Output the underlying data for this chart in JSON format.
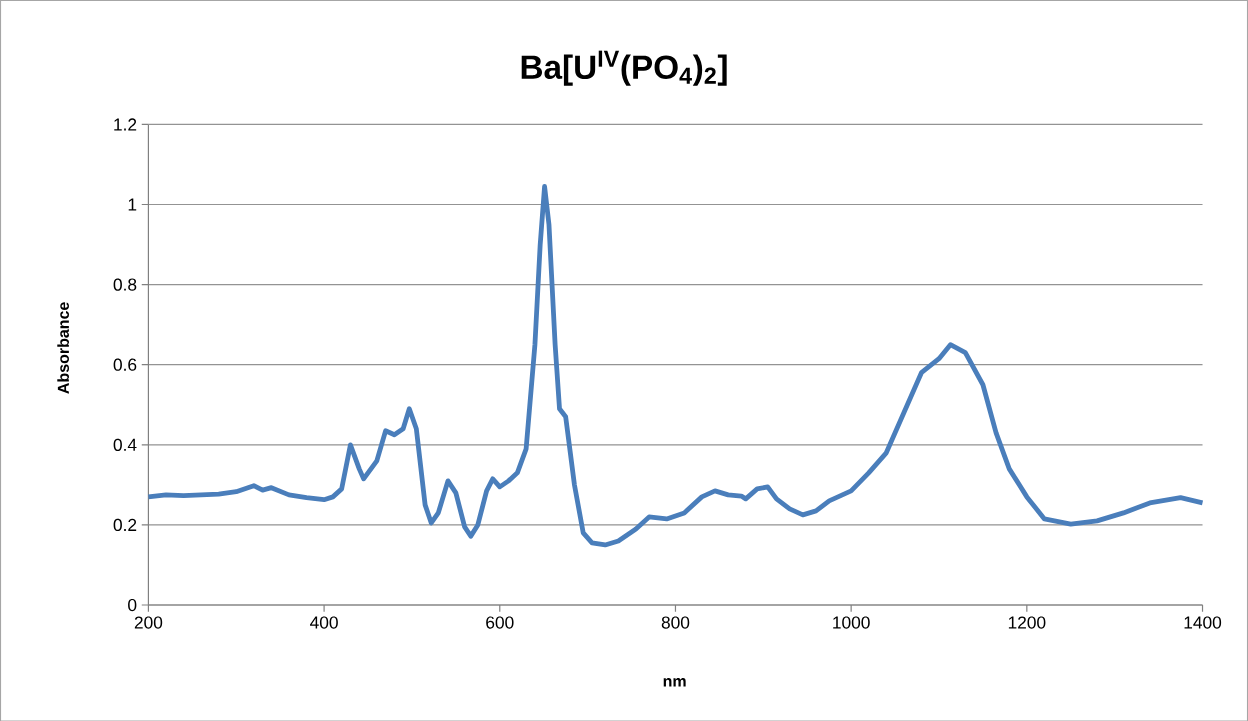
{
  "chart_data": {
    "type": "line",
    "title": "Ba[U$^{IV}$(PO$_{4}$)$_{2}$]",
    "xlabel": "nm",
    "ylabel": "Absorbance",
    "x": [
      200,
      220,
      240,
      260,
      280,
      300,
      320,
      330,
      340,
      360,
      380,
      400,
      410,
      420,
      430,
      440,
      445,
      460,
      470,
      480,
      490,
      497,
      505,
      515,
      522,
      530,
      541,
      550,
      560,
      567,
      575,
      585,
      592,
      600,
      610,
      620,
      630,
      640,
      646,
      651,
      656,
      663,
      668,
      675,
      685,
      695,
      705,
      720,
      735,
      755,
      770,
      790,
      810,
      830,
      845,
      860,
      875,
      880,
      893,
      905,
      915,
      930,
      945,
      960,
      975,
      1000,
      1020,
      1040,
      1060,
      1080,
      1100,
      1113,
      1130,
      1150,
      1165,
      1180,
      1200,
      1220,
      1250,
      1280,
      1310,
      1340,
      1375,
      1400
    ],
    "series": [
      {
        "color": "#4a7ebb",
        "values": [
          0.27,
          0.275,
          0.273,
          0.275,
          0.277,
          0.283,
          0.298,
          0.287,
          0.293,
          0.275,
          0.268,
          0.263,
          0.27,
          0.29,
          0.4,
          0.34,
          0.315,
          0.36,
          0.435,
          0.425,
          0.44,
          0.49,
          0.44,
          0.25,
          0.205,
          0.23,
          0.31,
          0.28,
          0.195,
          0.172,
          0.2,
          0.285,
          0.315,
          0.295,
          0.31,
          0.33,
          0.39,
          0.65,
          0.9,
          1.045,
          0.95,
          0.65,
          0.49,
          0.47,
          0.3,
          0.18,
          0.155,
          0.15,
          0.16,
          0.19,
          0.22,
          0.215,
          0.23,
          0.27,
          0.285,
          0.275,
          0.272,
          0.265,
          0.29,
          0.295,
          0.265,
          0.24,
          0.225,
          0.235,
          0.26,
          0.285,
          0.33,
          0.38,
          0.48,
          0.58,
          0.615,
          0.65,
          0.63,
          0.55,
          0.43,
          0.34,
          0.27,
          0.215,
          0.202,
          0.21,
          0.23,
          0.255,
          0.268,
          0.255
        ]
      }
    ],
    "xlim": [
      200,
      1400
    ],
    "xticks": [
      200,
      400,
      600,
      800,
      1000,
      1200,
      1400
    ],
    "ylim": [
      0,
      1.2
    ],
    "yticks": [
      0,
      0.2,
      0.4,
      0.6,
      0.8,
      1,
      1.2
    ],
    "grid": "y",
    "marker": "none",
    "line_style": "solid"
  }
}
